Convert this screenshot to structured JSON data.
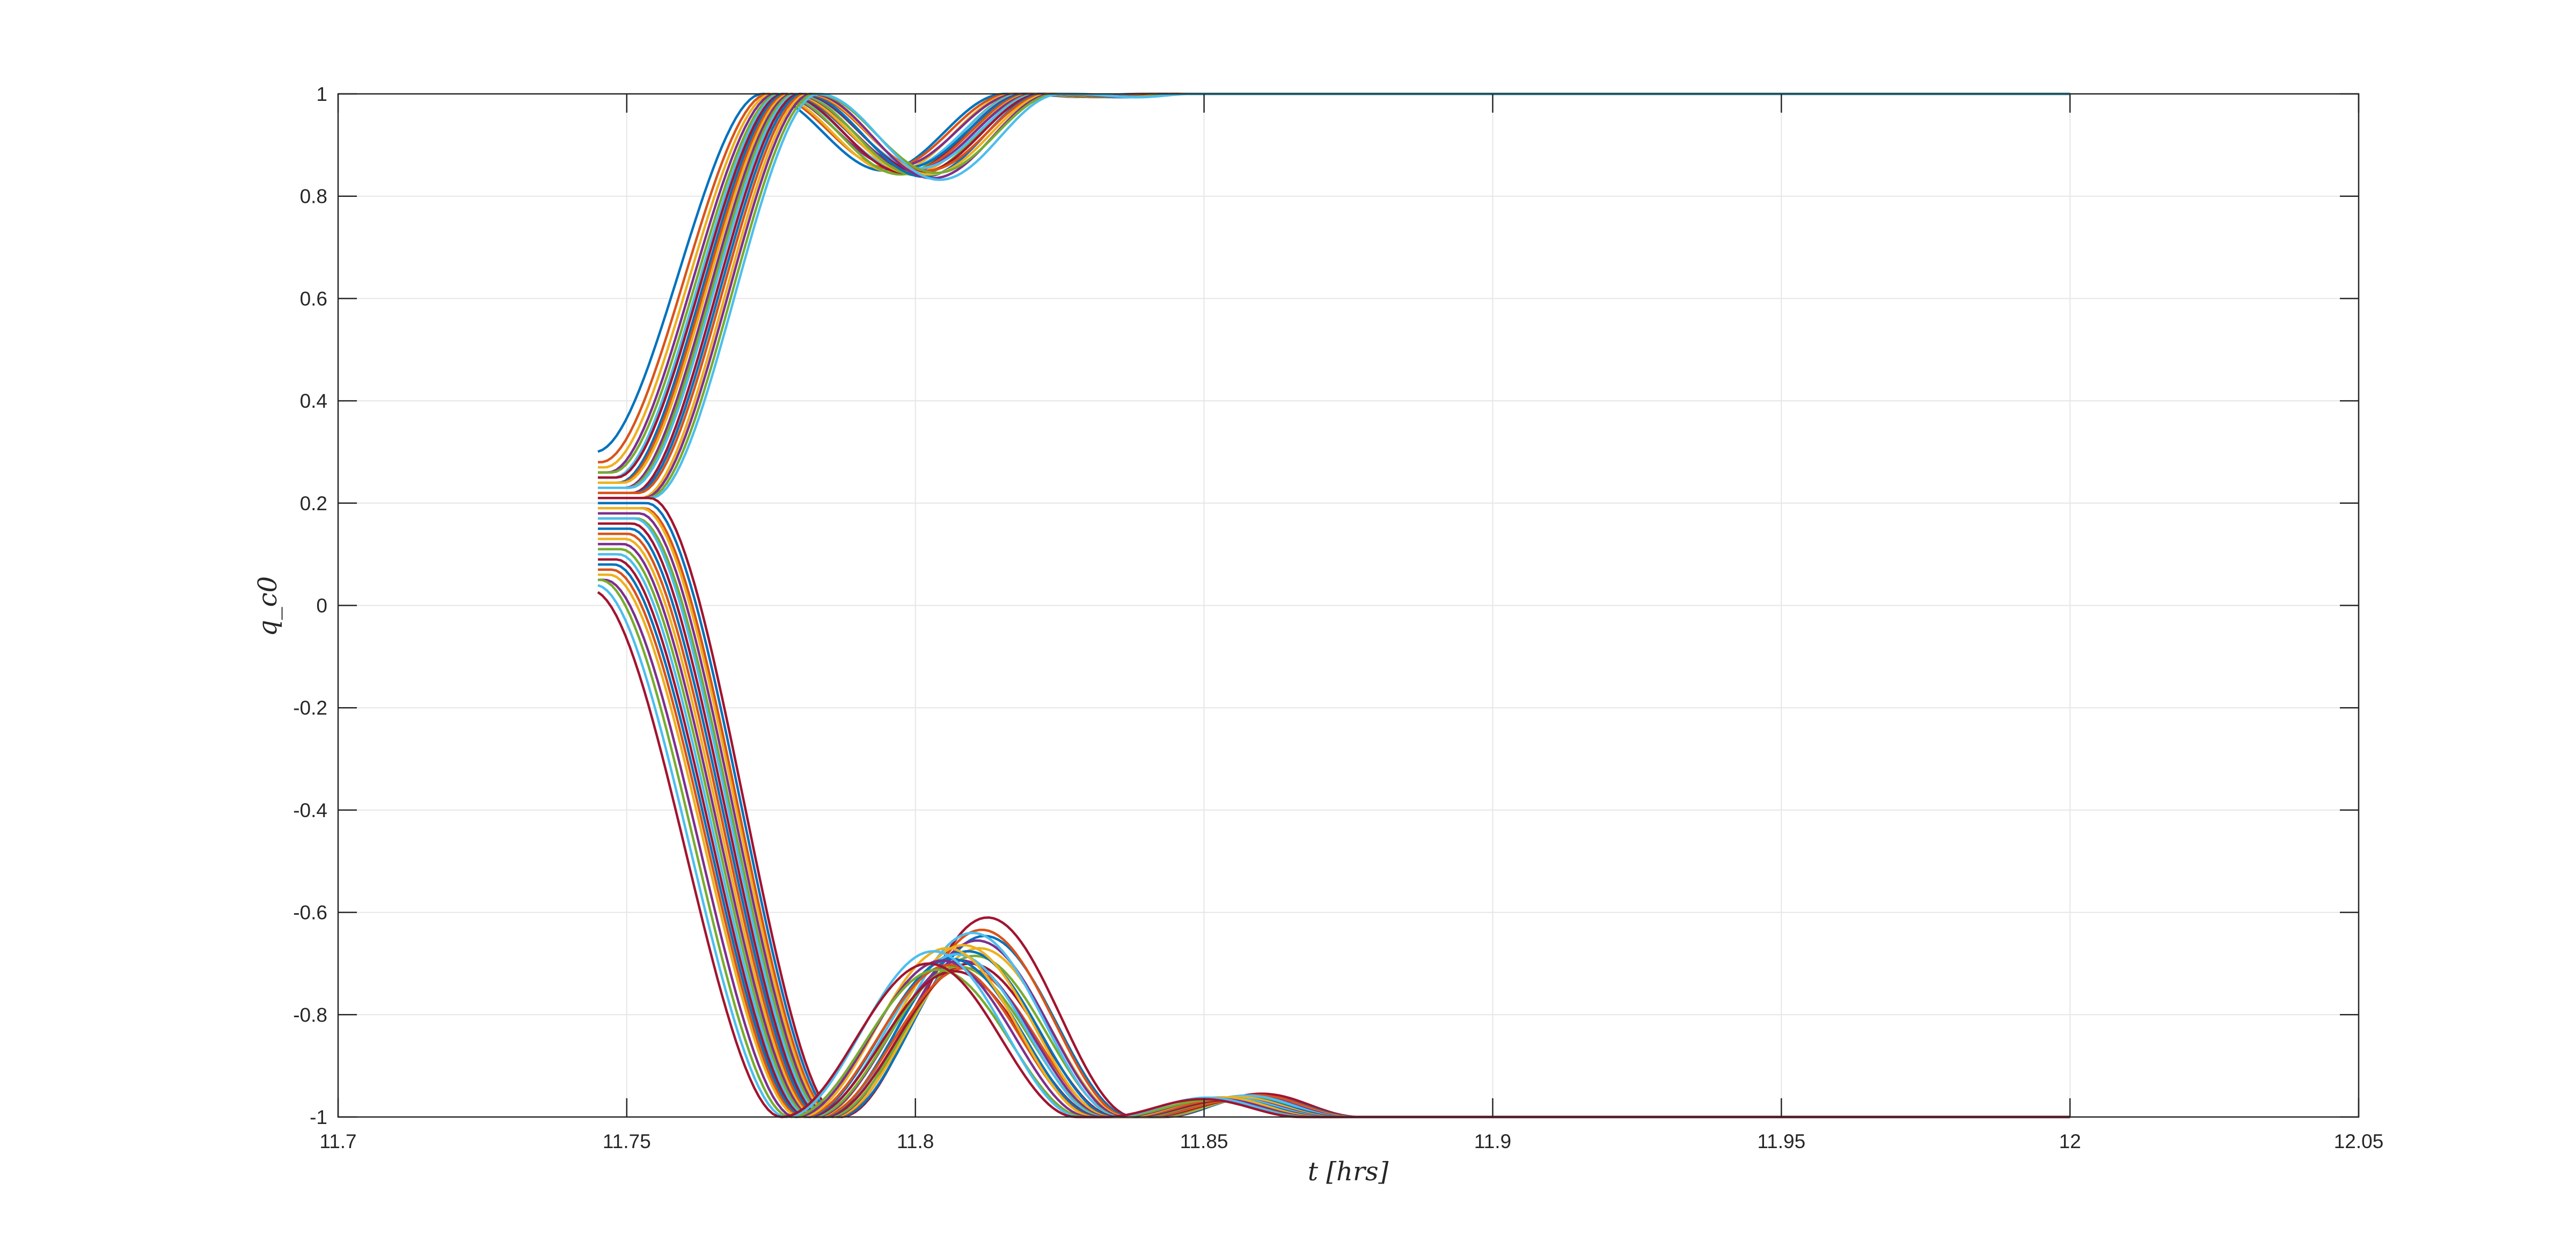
{
  "chart_data": {
    "type": "line",
    "title": "",
    "xlabel": "t [hrs]",
    "ylabel": "q_c0",
    "xlim": [
      11.7,
      12.05
    ],
    "ylim": [
      -1,
      1
    ],
    "xticks": [
      11.7,
      11.75,
      11.8,
      11.85,
      11.9,
      11.95,
      12,
      12.05
    ],
    "xtick_labels": [
      "11.7",
      "11.75",
      "11.8",
      "11.85",
      "11.9",
      "11.95",
      "12",
      "12.05"
    ],
    "yticks": [
      -1,
      -0.8,
      -0.6,
      -0.4,
      -0.2,
      0,
      0.2,
      0.4,
      0.6,
      0.8,
      1
    ],
    "ytick_labels": [
      "-1",
      "-0.8",
      "-0.6",
      "-0.4",
      "-0.2",
      "0",
      "0.2",
      "0.4",
      "0.6",
      "0.8",
      "1"
    ],
    "grid": true,
    "legend": "none",
    "x_start": 11.745,
    "x_end": 12.0,
    "colors": [
      "#0072BD",
      "#D95319",
      "#EDB120",
      "#7E2F8E",
      "#77AC30",
      "#4DBEEE",
      "#A2142F"
    ],
    "series_up": [
      {
        "y0": 0.3,
        "shift": -0.0045,
        "amp": 1.0
      },
      {
        "y0": 0.28,
        "shift": -0.0035,
        "amp": 0.97
      },
      {
        "y0": 0.27,
        "shift": -0.0028,
        "amp": 1.02
      },
      {
        "y0": 0.26,
        "shift": -0.0022,
        "amp": 0.95
      },
      {
        "y0": 0.26,
        "shift": -0.0016,
        "amp": 1.05
      },
      {
        "y0": 0.25,
        "shift": -0.0012,
        "amp": 0.98
      },
      {
        "y0": 0.25,
        "shift": -0.0008,
        "amp": 1.03
      },
      {
        "y0": 0.24,
        "shift": -0.0004,
        "amp": 0.96
      },
      {
        "y0": 0.24,
        "shift": 0.0,
        "amp": 1.0
      },
      {
        "y0": 0.24,
        "shift": 0.0004,
        "amp": 1.04
      },
      {
        "y0": 0.23,
        "shift": 0.0008,
        "amp": 0.99
      },
      {
        "y0": 0.23,
        "shift": 0.0012,
        "amp": 1.06
      },
      {
        "y0": 0.23,
        "shift": 0.0016,
        "amp": 0.97
      },
      {
        "y0": 0.22,
        "shift": 0.002,
        "amp": 1.02
      },
      {
        "y0": 0.22,
        "shift": 0.0025,
        "amp": 1.08
      },
      {
        "y0": 0.22,
        "shift": 0.003,
        "amp": 1.0
      },
      {
        "y0": 0.21,
        "shift": 0.0035,
        "amp": 1.05
      },
      {
        "y0": 0.21,
        "shift": 0.004,
        "amp": 1.1
      },
      {
        "y0": 0.21,
        "shift": 0.0046,
        "amp": 1.03
      },
      {
        "y0": 0.21,
        "shift": 0.0052,
        "amp": 1.12
      }
    ],
    "series_down": [
      {
        "y0": 0.21,
        "shift": 0.005,
        "amp": 1.3
      },
      {
        "y0": 0.2,
        "shift": 0.0045,
        "amp": 1.18
      },
      {
        "y0": 0.19,
        "shift": 0.004,
        "amp": 1.22
      },
      {
        "y0": 0.19,
        "shift": 0.0036,
        "amp": 1.1
      },
      {
        "y0": 0.18,
        "shift": 0.0032,
        "amp": 1.15
      },
      {
        "y0": 0.17,
        "shift": 0.0028,
        "amp": 1.05
      },
      {
        "y0": 0.17,
        "shift": 0.0024,
        "amp": 1.2
      },
      {
        "y0": 0.16,
        "shift": 0.002,
        "amp": 1.0
      },
      {
        "y0": 0.15,
        "shift": 0.0016,
        "amp": 1.08
      },
      {
        "y0": 0.14,
        "shift": 0.0012,
        "amp": 0.97
      },
      {
        "y0": 0.13,
        "shift": 0.0008,
        "amp": 1.12
      },
      {
        "y0": 0.12,
        "shift": 0.0004,
        "amp": 1.02
      },
      {
        "y0": 0.11,
        "shift": 0.0,
        "amp": 0.98
      },
      {
        "y0": 0.1,
        "shift": -0.0004,
        "amp": 1.06
      },
      {
        "y0": 0.09,
        "shift": -0.0008,
        "amp": 0.95
      },
      {
        "y0": 0.08,
        "shift": -0.0012,
        "amp": 1.03
      },
      {
        "y0": 0.07,
        "shift": -0.0016,
        "amp": 0.99
      },
      {
        "y0": 0.06,
        "shift": -0.002,
        "amp": 1.1
      },
      {
        "y0": 0.05,
        "shift": -0.0028,
        "amp": 1.02
      },
      {
        "y0": 0.05,
        "shift": -0.0036,
        "amp": 0.96
      },
      {
        "y0": 0.04,
        "shift": -0.0044,
        "amp": 1.08
      },
      {
        "y0": 0.03,
        "shift": -0.0052,
        "amp": 1.0
      }
    ]
  }
}
